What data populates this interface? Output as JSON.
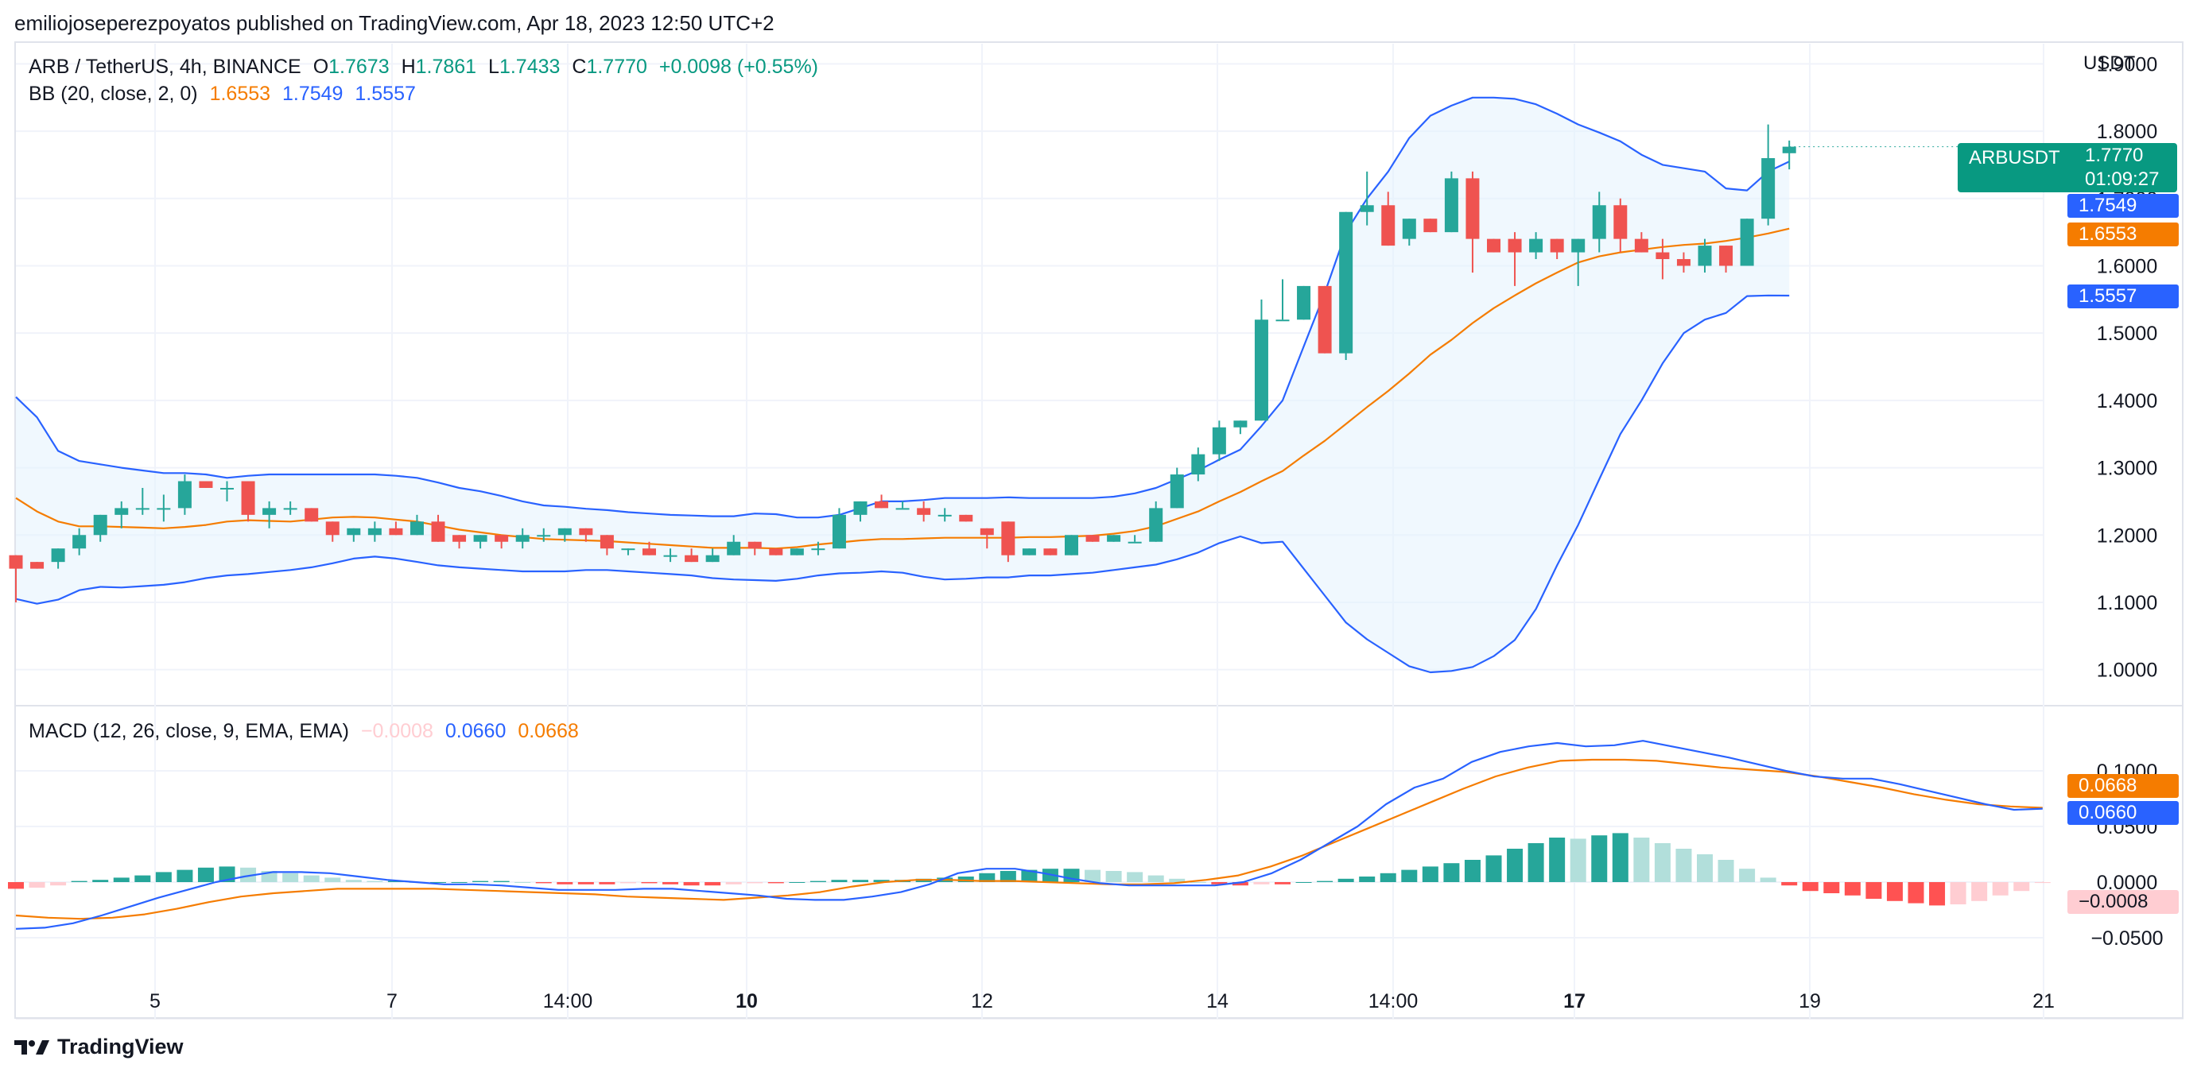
{
  "header": {
    "publisher_line": "emiliojoseperezpoyatos published on TradingView.com, Apr 18, 2023 12:50 UTC+2"
  },
  "footer": {
    "brand": "TradingView"
  },
  "main_pane": {
    "symbol_line": {
      "symbol": "ARB / TetherUS, 4h, BINANCE",
      "open_label": "O",
      "open": "1.7673",
      "high_label": "H",
      "high": "1.7861",
      "low_label": "L",
      "low": "1.7433",
      "close_label": "C",
      "close": "1.7770",
      "change": "+0.0098 (+0.55%)"
    },
    "bb_line": {
      "name": "BB (20, close, 2, 0)",
      "basis": "1.6553",
      "upper": "1.7549",
      "lower": "1.5557"
    },
    "axis_unit": "USDT",
    "price_badge": {
      "symbol": "ARBUSDT",
      "price": "1.7770",
      "countdown": "01:09:27"
    },
    "upper_badge": "1.7549",
    "basis_badge": "1.6553",
    "lower_badge": "1.5557"
  },
  "macd_pane": {
    "name": "MACD (12, 26, close, 9, EMA, EMA)",
    "hist": "−0.0008",
    "macd": "0.0660",
    "signal": "0.0668",
    "macd_badge": "0.0660",
    "signal_badge": "0.0668",
    "hist_badge": "−0.0008"
  },
  "colors": {
    "up": "#26a69a",
    "down": "#ef5350",
    "bb_basis": "#f57c00",
    "bb_band": "#2962ff",
    "bb_fill": "#e3f2fd",
    "macd_line": "#2962ff",
    "signal_line": "#f57c00",
    "hist_up_strong": "#26a69a",
    "hist_up_weak": "#b2dfdb",
    "hist_down_strong": "#ff5252",
    "hist_down_weak": "#ffcdd2",
    "badge_green": "#089981",
    "grid": "#f0f3fa"
  },
  "chart_data": [
    {
      "type": "candlestick",
      "title": "ARB / TetherUS, 4h, BINANCE",
      "yunit": "USDT",
      "ylim": [
        0.95,
        1.93
      ],
      "y_ticks": [
        "1.0000",
        "1.1000",
        "1.2000",
        "1.3000",
        "1.4000",
        "1.5000",
        "1.6000",
        "1.7000",
        "1.8000",
        "1.9000"
      ],
      "x_ticks": [
        "5",
        "7",
        "14:00",
        "10",
        "12",
        "14",
        "14:00",
        "17",
        "19",
        "21"
      ],
      "x_ticks_bold": [
        "10",
        "17"
      ],
      "candles": [
        [
          1.17,
          1.17,
          1.1,
          1.15
        ],
        [
          1.16,
          1.16,
          1.15,
          1.15
        ],
        [
          1.16,
          1.18,
          1.15,
          1.18
        ],
        [
          1.18,
          1.21,
          1.17,
          1.2
        ],
        [
          1.2,
          1.23,
          1.19,
          1.23
        ],
        [
          1.23,
          1.25,
          1.21,
          1.24
        ],
        [
          1.24,
          1.27,
          1.23,
          1.24
        ],
        [
          1.24,
          1.26,
          1.22,
          1.24
        ],
        [
          1.24,
          1.29,
          1.23,
          1.28
        ],
        [
          1.28,
          1.28,
          1.27,
          1.27
        ],
        [
          1.27,
          1.28,
          1.25,
          1.27
        ],
        [
          1.28,
          1.28,
          1.22,
          1.23
        ],
        [
          1.23,
          1.25,
          1.21,
          1.24
        ],
        [
          1.24,
          1.25,
          1.23,
          1.24
        ],
        [
          1.24,
          1.24,
          1.22,
          1.22
        ],
        [
          1.22,
          1.22,
          1.19,
          1.2
        ],
        [
          1.2,
          1.21,
          1.19,
          1.21
        ],
        [
          1.2,
          1.22,
          1.19,
          1.21
        ],
        [
          1.21,
          1.22,
          1.2,
          1.2
        ],
        [
          1.2,
          1.23,
          1.2,
          1.22
        ],
        [
          1.22,
          1.23,
          1.19,
          1.19
        ],
        [
          1.2,
          1.2,
          1.18,
          1.19
        ],
        [
          1.19,
          1.2,
          1.18,
          1.2
        ],
        [
          1.2,
          1.2,
          1.18,
          1.19
        ],
        [
          1.19,
          1.21,
          1.18,
          1.2
        ],
        [
          1.2,
          1.21,
          1.19,
          1.2
        ],
        [
          1.2,
          1.21,
          1.19,
          1.21
        ],
        [
          1.21,
          1.21,
          1.19,
          1.2
        ],
        [
          1.2,
          1.2,
          1.17,
          1.18
        ],
        [
          1.18,
          1.18,
          1.17,
          1.18
        ],
        [
          1.18,
          1.19,
          1.17,
          1.17
        ],
        [
          1.17,
          1.18,
          1.16,
          1.17
        ],
        [
          1.17,
          1.18,
          1.16,
          1.16
        ],
        [
          1.16,
          1.18,
          1.16,
          1.17
        ],
        [
          1.17,
          1.2,
          1.17,
          1.19
        ],
        [
          1.19,
          1.19,
          1.17,
          1.18
        ],
        [
          1.18,
          1.18,
          1.17,
          1.17
        ],
        [
          1.17,
          1.18,
          1.17,
          1.18
        ],
        [
          1.18,
          1.19,
          1.17,
          1.18
        ],
        [
          1.18,
          1.24,
          1.18,
          1.23
        ],
        [
          1.23,
          1.25,
          1.22,
          1.25
        ],
        [
          1.25,
          1.26,
          1.24,
          1.24
        ],
        [
          1.24,
          1.25,
          1.24,
          1.24
        ],
        [
          1.24,
          1.25,
          1.22,
          1.23
        ],
        [
          1.23,
          1.24,
          1.22,
          1.23
        ],
        [
          1.23,
          1.23,
          1.22,
          1.22
        ],
        [
          1.21,
          1.21,
          1.18,
          1.2
        ],
        [
          1.22,
          1.22,
          1.16,
          1.17
        ],
        [
          1.17,
          1.18,
          1.17,
          1.18
        ],
        [
          1.18,
          1.18,
          1.17,
          1.17
        ],
        [
          1.17,
          1.2,
          1.17,
          1.2
        ],
        [
          1.2,
          1.2,
          1.19,
          1.19
        ],
        [
          1.19,
          1.2,
          1.19,
          1.2
        ],
        [
          1.19,
          1.2,
          1.19,
          1.19
        ],
        [
          1.19,
          1.25,
          1.19,
          1.24
        ],
        [
          1.24,
          1.3,
          1.24,
          1.29
        ],
        [
          1.29,
          1.33,
          1.28,
          1.32
        ],
        [
          1.32,
          1.37,
          1.31,
          1.36
        ],
        [
          1.36,
          1.37,
          1.35,
          1.37
        ],
        [
          1.37,
          1.55,
          1.37,
          1.52
        ],
        [
          1.52,
          1.58,
          1.52,
          1.52
        ],
        [
          1.52,
          1.57,
          1.52,
          1.57
        ],
        [
          1.57,
          1.57,
          1.47,
          1.47
        ],
        [
          1.47,
          1.68,
          1.46,
          1.68
        ],
        [
          1.68,
          1.74,
          1.66,
          1.69
        ],
        [
          1.69,
          1.71,
          1.63,
          1.63
        ],
        [
          1.64,
          1.67,
          1.63,
          1.67
        ],
        [
          1.67,
          1.67,
          1.65,
          1.65
        ],
        [
          1.65,
          1.74,
          1.65,
          1.73
        ],
        [
          1.73,
          1.74,
          1.59,
          1.64
        ],
        [
          1.64,
          1.64,
          1.62,
          1.62
        ],
        [
          1.64,
          1.65,
          1.57,
          1.62
        ],
        [
          1.62,
          1.65,
          1.61,
          1.64
        ],
        [
          1.64,
          1.64,
          1.61,
          1.62
        ],
        [
          1.62,
          1.64,
          1.57,
          1.64
        ],
        [
          1.64,
          1.71,
          1.62,
          1.69
        ],
        [
          1.69,
          1.7,
          1.62,
          1.64
        ],
        [
          1.64,
          1.65,
          1.62,
          1.62
        ],
        [
          1.62,
          1.64,
          1.58,
          1.61
        ],
        [
          1.61,
          1.62,
          1.59,
          1.6
        ],
        [
          1.6,
          1.64,
          1.59,
          1.63
        ],
        [
          1.63,
          1.63,
          1.59,
          1.6
        ],
        [
          1.6,
          1.67,
          1.6,
          1.67
        ],
        [
          1.67,
          1.81,
          1.66,
          1.76
        ],
        [
          1.7673,
          1.7861,
          1.7433,
          1.777
        ]
      ],
      "bb_basis": [
        1.255,
        1.235,
        1.22,
        1.213,
        1.213,
        1.212,
        1.211,
        1.21,
        1.212,
        1.215,
        1.22,
        1.222,
        1.221,
        1.22,
        1.223,
        1.226,
        1.227,
        1.226,
        1.223,
        1.22,
        1.214,
        1.208,
        1.204,
        1.2,
        1.197,
        1.194,
        1.193,
        1.192,
        1.191,
        1.189,
        1.187,
        1.185,
        1.183,
        1.181,
        1.181,
        1.181,
        1.18,
        1.182,
        1.186,
        1.189,
        1.192,
        1.194,
        1.194,
        1.195,
        1.196,
        1.196,
        1.196,
        1.196,
        1.197,
        1.197,
        1.198,
        1.199,
        1.202,
        1.206,
        1.213,
        1.224,
        1.235,
        1.25,
        1.264,
        1.28,
        1.295,
        1.318,
        1.34,
        1.365,
        1.39,
        1.414,
        1.44,
        1.468,
        1.49,
        1.515,
        1.537,
        1.556,
        1.574,
        1.59,
        1.605,
        1.614,
        1.62,
        1.624,
        1.628,
        1.631,
        1.633,
        1.637,
        1.642,
        1.648,
        1.6553
      ],
      "bb_upper": [
        1.405,
        1.375,
        1.325,
        1.31,
        1.305,
        1.3,
        1.296,
        1.292,
        1.292,
        1.29,
        1.285,
        1.288,
        1.29,
        1.29,
        1.29,
        1.29,
        1.29,
        1.29,
        1.288,
        1.285,
        1.278,
        1.27,
        1.265,
        1.258,
        1.25,
        1.244,
        1.242,
        1.239,
        1.237,
        1.234,
        1.232,
        1.23,
        1.229,
        1.228,
        1.228,
        1.232,
        1.231,
        1.226,
        1.226,
        1.23,
        1.24,
        1.25,
        1.25,
        1.252,
        1.255,
        1.255,
        1.255,
        1.256,
        1.255,
        1.255,
        1.255,
        1.255,
        1.257,
        1.262,
        1.27,
        1.283,
        1.296,
        1.312,
        1.327,
        1.362,
        1.4,
        1.48,
        1.56,
        1.65,
        1.7,
        1.74,
        1.79,
        1.823,
        1.838,
        1.85,
        1.85,
        1.848,
        1.84,
        1.826,
        1.81,
        1.798,
        1.785,
        1.765,
        1.75,
        1.745,
        1.74,
        1.715,
        1.712,
        1.74,
        1.7549
      ],
      "bb_lower": [
        1.105,
        1.098,
        1.104,
        1.118,
        1.123,
        1.122,
        1.124,
        1.126,
        1.13,
        1.136,
        1.14,
        1.142,
        1.145,
        1.148,
        1.152,
        1.158,
        1.165,
        1.168,
        1.165,
        1.16,
        1.155,
        1.152,
        1.15,
        1.148,
        1.146,
        1.146,
        1.146,
        1.148,
        1.148,
        1.146,
        1.144,
        1.142,
        1.14,
        1.136,
        1.134,
        1.133,
        1.132,
        1.135,
        1.14,
        1.143,
        1.144,
        1.146,
        1.144,
        1.138,
        1.134,
        1.135,
        1.137,
        1.137,
        1.14,
        1.14,
        1.142,
        1.144,
        1.148,
        1.152,
        1.156,
        1.164,
        1.174,
        1.188,
        1.198,
        1.188,
        1.19,
        1.15,
        1.11,
        1.07,
        1.045,
        1.025,
        1.005,
        0.996,
        0.998,
        1.004,
        1.02,
        1.044,
        1.09,
        1.155,
        1.215,
        1.283,
        1.35,
        1.4,
        1.455,
        1.5,
        1.52,
        1.53,
        1.555,
        1.556,
        1.5557
      ]
    },
    {
      "type": "macd",
      "title": "MACD (12, 26, close, 9, EMA, EMA)",
      "ylim": [
        -0.09,
        0.155
      ],
      "y_ticks": [
        "−0.0500",
        "0.0000",
        "0.0500",
        "0.1000"
      ],
      "histogram": [
        -0.006,
        -0.005,
        -0.003,
        0.001,
        0.002,
        0.004,
        0.006,
        0.009,
        0.011,
        0.013,
        0.014,
        0.013,
        0.01,
        0.008,
        0.006,
        0.004,
        0.002,
        0.001,
        0.001,
        0.0,
        0.0,
        0.0,
        0.001,
        0.001,
        0.0,
        -0.001,
        -0.002,
        -0.002,
        -0.002,
        -0.001,
        -0.001,
        -0.002,
        -0.003,
        -0.003,
        -0.002,
        -0.001,
        -0.001,
        0.0,
        0.001,
        0.002,
        0.002,
        0.002,
        0.002,
        0.003,
        0.004,
        0.005,
        0.008,
        0.01,
        0.011,
        0.012,
        0.012,
        0.011,
        0.01,
        0.009,
        0.006,
        0.003,
        0.0,
        -0.002,
        -0.003,
        -0.002,
        -0.002,
        0.0,
        0.001,
        0.003,
        0.005,
        0.008,
        0.011,
        0.014,
        0.017,
        0.02,
        0.024,
        0.03,
        0.035,
        0.04,
        0.039,
        0.042,
        0.044,
        0.04,
        0.035,
        0.03,
        0.025,
        0.02,
        0.012,
        0.004,
        -0.003,
        -0.008,
        -0.01,
        -0.012,
        -0.015,
        -0.017,
        -0.019,
        -0.021,
        -0.02,
        -0.017,
        -0.012,
        -0.008,
        -0.0008
      ],
      "macd": [
        -0.042,
        -0.041,
        -0.037,
        -0.03,
        -0.022,
        -0.014,
        -0.007,
        0.0,
        0.005,
        0.009,
        0.009,
        0.008,
        0.005,
        0.002,
        0.0,
        -0.002,
        -0.002,
        -0.003,
        -0.005,
        -0.007,
        -0.007,
        -0.007,
        -0.006,
        -0.006,
        -0.008,
        -0.01,
        -0.012,
        -0.015,
        -0.016,
        -0.016,
        -0.013,
        -0.009,
        -0.002,
        0.008,
        0.012,
        0.012,
        0.008,
        0.003,
        -0.001,
        -0.003,
        -0.003,
        -0.003,
        -0.003,
        0.0,
        0.008,
        0.02,
        0.035,
        0.05,
        0.07,
        0.085,
        0.093,
        0.108,
        0.117,
        0.122,
        0.125,
        0.122,
        0.123,
        0.127,
        0.122,
        0.117,
        0.112,
        0.106,
        0.1,
        0.095,
        0.093,
        0.093,
        0.088,
        0.082,
        0.076,
        0.07,
        0.065,
        0.066
      ],
      "signal": [
        -0.03,
        -0.032,
        -0.033,
        -0.032,
        -0.029,
        -0.024,
        -0.018,
        -0.013,
        -0.01,
        -0.008,
        -0.006,
        -0.006,
        -0.006,
        -0.006,
        -0.007,
        -0.008,
        -0.009,
        -0.01,
        -0.011,
        -0.013,
        -0.014,
        -0.015,
        -0.016,
        -0.014,
        -0.012,
        -0.009,
        -0.004,
        0.0,
        0.002,
        0.002,
        0.001,
        0.001,
        0.0,
        -0.001,
        -0.002,
        -0.002,
        -0.001,
        0.002,
        0.006,
        0.014,
        0.024,
        0.036,
        0.048,
        0.06,
        0.072,
        0.084,
        0.095,
        0.103,
        0.109,
        0.11,
        0.11,
        0.109,
        0.106,
        0.103,
        0.101,
        0.099,
        0.095,
        0.09,
        0.085,
        0.079,
        0.074,
        0.07,
        0.068,
        0.0668
      ]
    }
  ]
}
